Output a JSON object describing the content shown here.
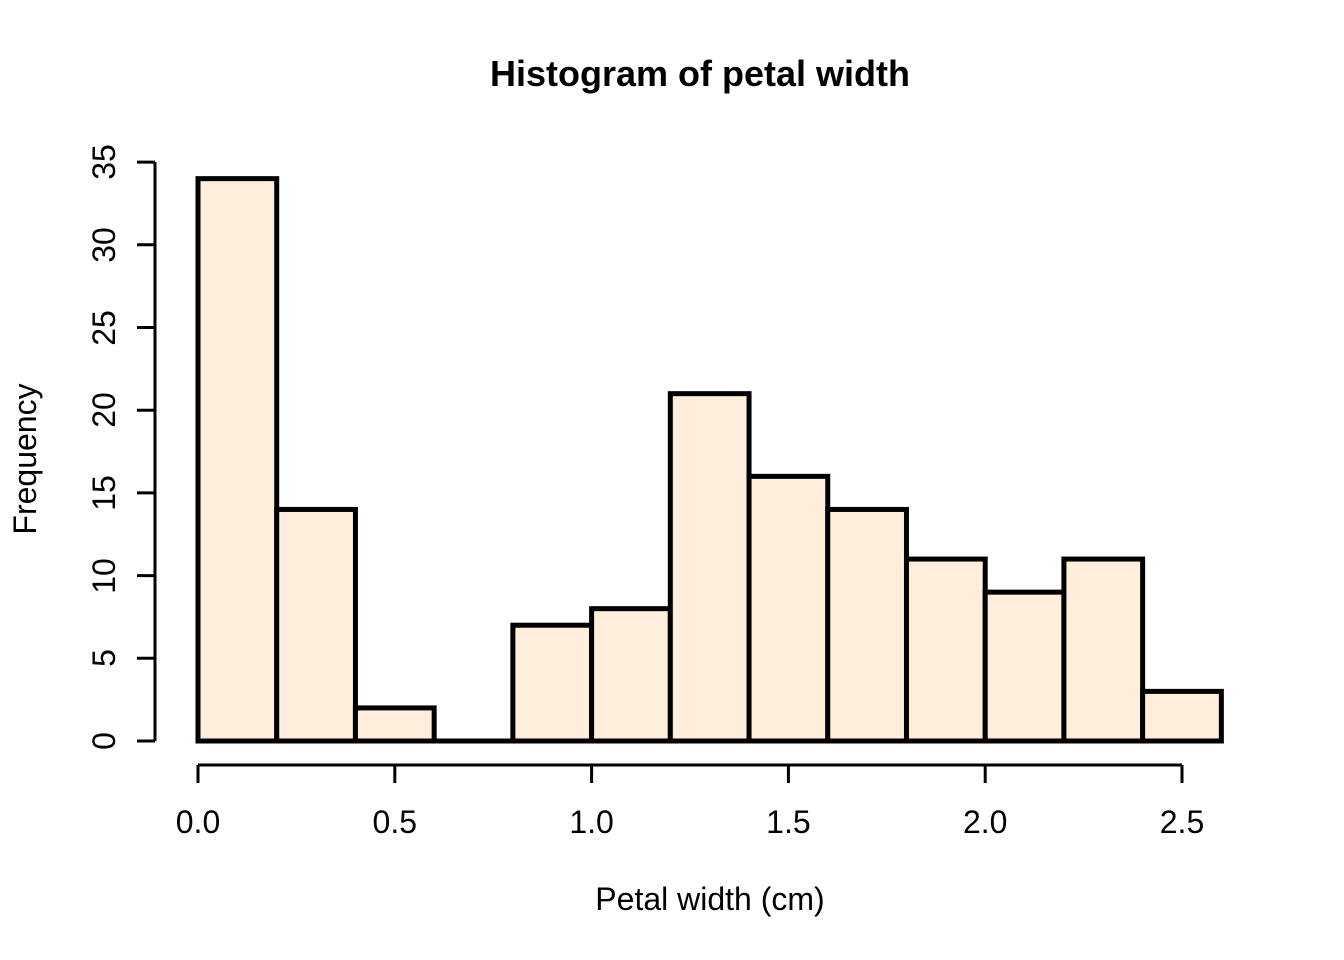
{
  "page": {
    "background": "#FFFFFF"
  },
  "chart_data": {
    "type": "bar",
    "chart_kind": "histogram",
    "title": "Histogram of petal width",
    "xlabel": "Petal width (cm)",
    "ylabel": "Frequency",
    "bin_start": 0.0,
    "bin_width": 0.2,
    "bin_edges": [
      0.0,
      0.2,
      0.4,
      0.6,
      0.8,
      1.0,
      1.2,
      1.4,
      1.6,
      1.8,
      2.0,
      2.2,
      2.4,
      2.6
    ],
    "counts": [
      34,
      14,
      2,
      0,
      7,
      8,
      21,
      16,
      14,
      11,
      9,
      11,
      3
    ],
    "x_tick_values": [
      0.0,
      0.5,
      1.0,
      1.5,
      2.0,
      2.5
    ],
    "x_tick_labels": [
      "0.0",
      "0.5",
      "1.0",
      "1.5",
      "2.0",
      "2.5"
    ],
    "y_tick_values": [
      0,
      5,
      10,
      15,
      20,
      25,
      30,
      35
    ],
    "y_tick_labels": [
      "0",
      "5",
      "10",
      "15",
      "20",
      "25",
      "30",
      "35"
    ],
    "xlim": [
      0.0,
      2.6
    ],
    "ylim": [
      0,
      35
    ],
    "grid": false,
    "legend_position": "none",
    "colors": {
      "bar_fill": "#FFEEDC",
      "bar_border": "#000000",
      "axis": "#000000",
      "text": "#000000"
    }
  }
}
